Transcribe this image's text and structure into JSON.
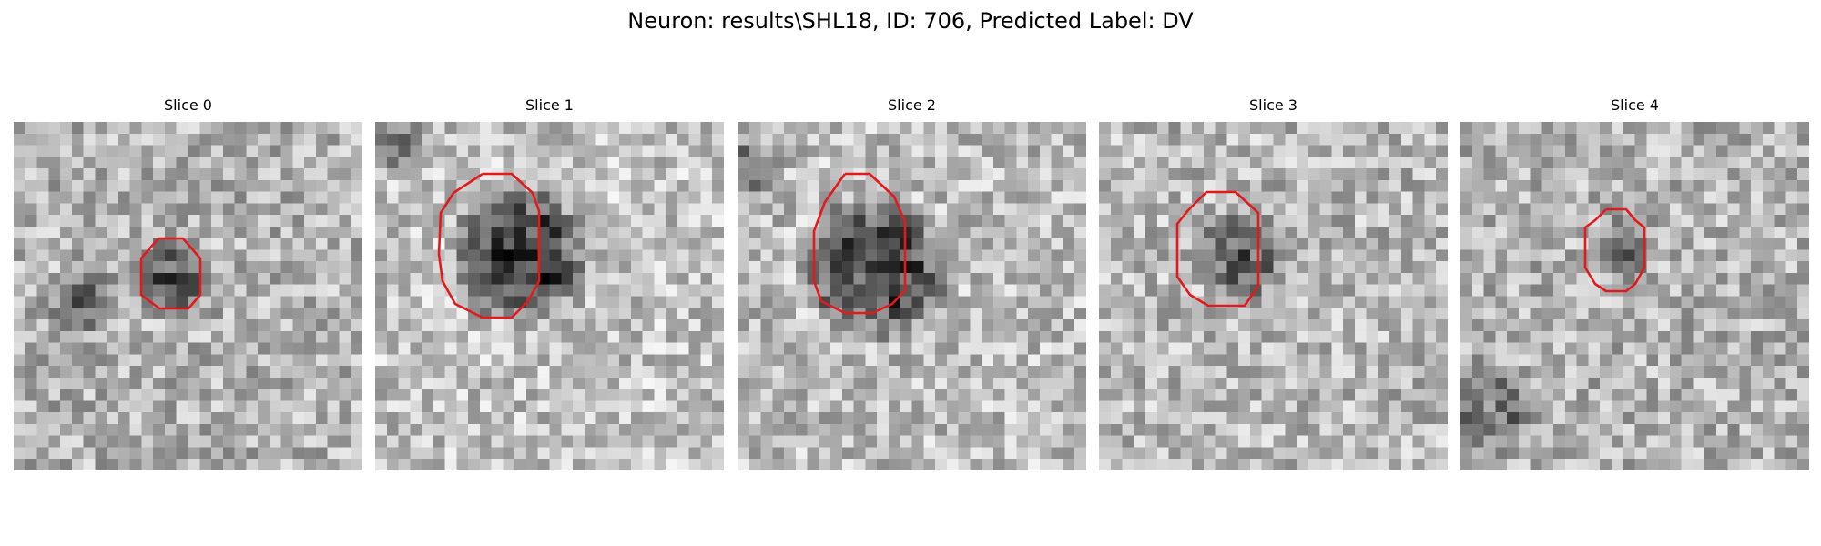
{
  "figure": {
    "title": "Neuron: results\\SHL18, ID: 706, Predicted Label: DV",
    "colormap": "gray",
    "contour_color": "#e31a1c",
    "slices": [
      {
        "label": "Slice 0",
        "seed": 11,
        "base_mean": 0.7,
        "blob_strength": 0.4
      },
      {
        "label": "Slice 1",
        "seed": 23,
        "base_mean": 0.76,
        "blob_strength": 0.58
      },
      {
        "label": "Slice 2",
        "seed": 37,
        "base_mean": 0.74,
        "blob_strength": 0.55
      },
      {
        "label": "Slice 3",
        "seed": 41,
        "base_mean": 0.72,
        "blob_strength": 0.36
      },
      {
        "label": "Slice 4",
        "seed": 53,
        "base_mean": 0.7,
        "blob_strength": 0.32
      }
    ]
  }
}
